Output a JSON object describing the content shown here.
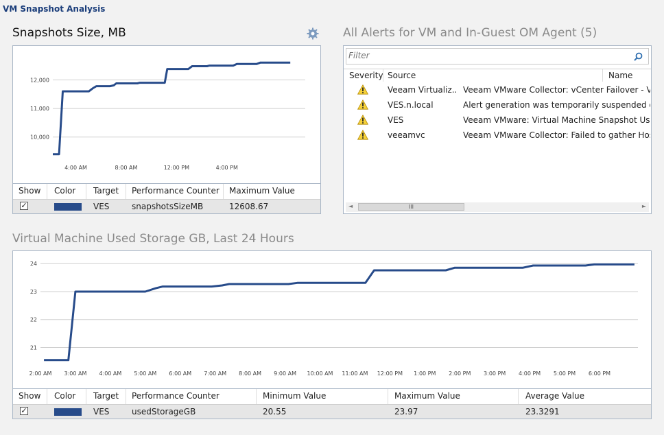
{
  "app": {
    "title": "VM Snapshot Analysis"
  },
  "snapshots": {
    "title": "Snapshots Size, MB",
    "gear_icon": "gear-icon",
    "chart_data": {
      "type": "line",
      "ylim": [
        9200,
        12900
      ],
      "yticks": [
        10000,
        11000,
        12000
      ],
      "ytick_labels": [
        "10,000",
        "11,000",
        "12,000"
      ],
      "xlim": [
        0,
        20.3
      ],
      "xticks": [
        1.85,
        5.9,
        9.95,
        14.0
      ],
      "xtick_labels": [
        "4:00 AM",
        "8:00 AM",
        "12:00 PM",
        "4:00 PM"
      ],
      "grid": true,
      "series": [
        {
          "color": "#274b8a",
          "x": [
            0,
            0.5,
            0.8,
            2.9,
            3.2,
            3.5,
            4.6,
            4.9,
            5.1,
            6.8,
            7.0,
            9.0,
            9.2,
            10.9,
            11.2,
            12.4,
            12.6,
            14.5,
            14.8,
            16.4,
            16.7,
            19.1
          ],
          "y": [
            9400,
            9400,
            11600,
            11600,
            11700,
            11780,
            11780,
            11810,
            11880,
            11880,
            11900,
            11900,
            12380,
            12380,
            12480,
            12480,
            12500,
            12500,
            12560,
            12560,
            12608,
            12608
          ]
        }
      ]
    },
    "legend": {
      "headers": [
        "Show",
        "Color",
        "Target",
        "Performance Counter",
        "Maximum Value"
      ],
      "rows": [
        {
          "show": "✓",
          "color": "#274b8a",
          "target": "VES",
          "counter": "snapshotsSizeMB",
          "max": "12608.67"
        }
      ]
    }
  },
  "alerts": {
    "title": "All Alerts for VM and In-Guest OM Agent (5)",
    "filter_placeholder": "Filter",
    "search_icon": "search-icon",
    "columns": [
      "Severity",
      "Source",
      "Name"
    ],
    "rows": [
      {
        "severity": "warning",
        "source": "Veeam Virtualiz...",
        "name": "Veeam VMware Collector: vCenter Failover - Veeam"
      },
      {
        "severity": "warning",
        "source": "VES.n.local",
        "name": "Alert generation was temporarily suspended due to"
      },
      {
        "severity": "warning",
        "source": "VES",
        "name": "Veeam VMware: Virtual Machine Snapshot Usage An"
      },
      {
        "severity": "warning",
        "source": "veeamvc",
        "name": "Veeam VMware Collector: Failed to gather Host hard"
      }
    ],
    "scroll_thumb_glyph": "III",
    "scroll_left": "◄",
    "scroll_right": "►"
  },
  "storage": {
    "title": "Virtual Machine Used Storage GB, Last 24 Hours",
    "chart_data": {
      "type": "line",
      "ylim": [
        20.35,
        24.25
      ],
      "yticks": [
        21,
        22,
        23,
        24
      ],
      "ytick_labels": [
        "21",
        "22",
        "23",
        "24"
      ],
      "xlim": [
        0,
        17.1
      ],
      "xticks": [
        0,
        1,
        2,
        3,
        4,
        5,
        6,
        7,
        8,
        9,
        10,
        11,
        12,
        13,
        14,
        15,
        16
      ],
      "xtick_labels": [
        "2:00 AM",
        "3:00 AM",
        "4:00 AM",
        "5:00 AM",
        "6:00 AM",
        "7:00 AM",
        "8:00 AM",
        "9:00 AM",
        "10:00 AM",
        "11:00 AM",
        "12:00 PM",
        "1:00 PM",
        "2:00 PM",
        "3:00 PM",
        "4:00 PM",
        "5:00 PM",
        "6:00 PM"
      ],
      "grid": true,
      "series": [
        {
          "color": "#274b8a",
          "x": [
            0.1,
            0.8,
            1.0,
            3.0,
            3.3,
            3.5,
            4.9,
            5.2,
            5.4,
            7.1,
            7.35,
            9.3,
            9.55,
            11.6,
            11.85,
            13.8,
            14.1,
            15.6,
            15.85,
            17.0
          ],
          "y": [
            20.55,
            20.55,
            23.0,
            23.0,
            23.12,
            23.18,
            23.18,
            23.22,
            23.27,
            23.27,
            23.31,
            23.31,
            23.76,
            23.76,
            23.85,
            23.85,
            23.93,
            23.93,
            23.97,
            23.97
          ]
        }
      ]
    },
    "legend": {
      "headers": [
        "Show",
        "Color",
        "Target",
        "Performance Counter",
        "Minimum Value",
        "Maximum Value",
        "Average Value"
      ],
      "rows": [
        {
          "show": "✓",
          "color": "#274b8a",
          "target": "VES",
          "counter": "usedStorageGB",
          "min": "20.55",
          "max": "23.97",
          "avg": "23.3291"
        }
      ]
    }
  }
}
